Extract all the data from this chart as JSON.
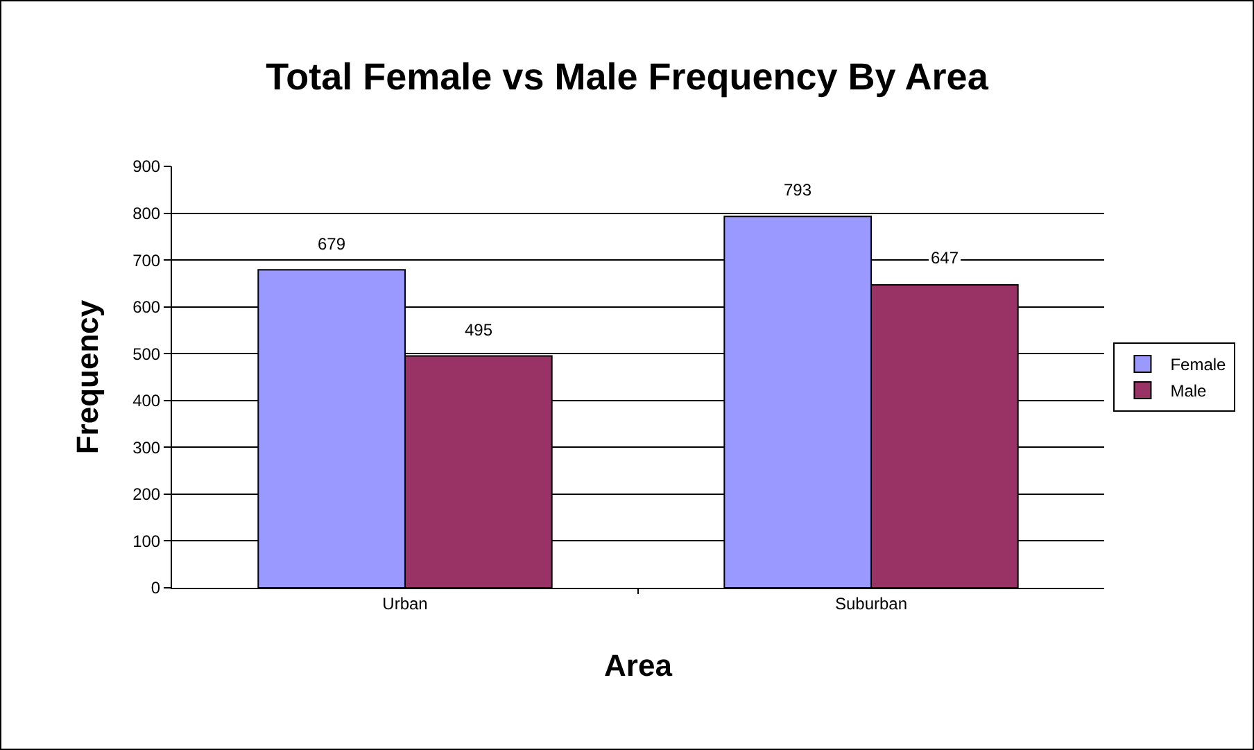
{
  "chart_data": {
    "type": "bar",
    "title": "Total Female vs Male Frequency By Area",
    "xlabel": "Area",
    "ylabel": "Frequency",
    "categories": [
      "Urban",
      "Suburban"
    ],
    "series": [
      {
        "name": "Female",
        "color": "#9999ff",
        "values": [
          679,
          793
        ]
      },
      {
        "name": "Male",
        "color": "#993366",
        "values": [
          495,
          647
        ]
      }
    ],
    "ylim": [
      0,
      900
    ],
    "yticks": [
      0,
      100,
      200,
      300,
      400,
      500,
      600,
      700,
      800,
      900
    ],
    "grid": "y",
    "legend": "right",
    "data_labels": true
  }
}
